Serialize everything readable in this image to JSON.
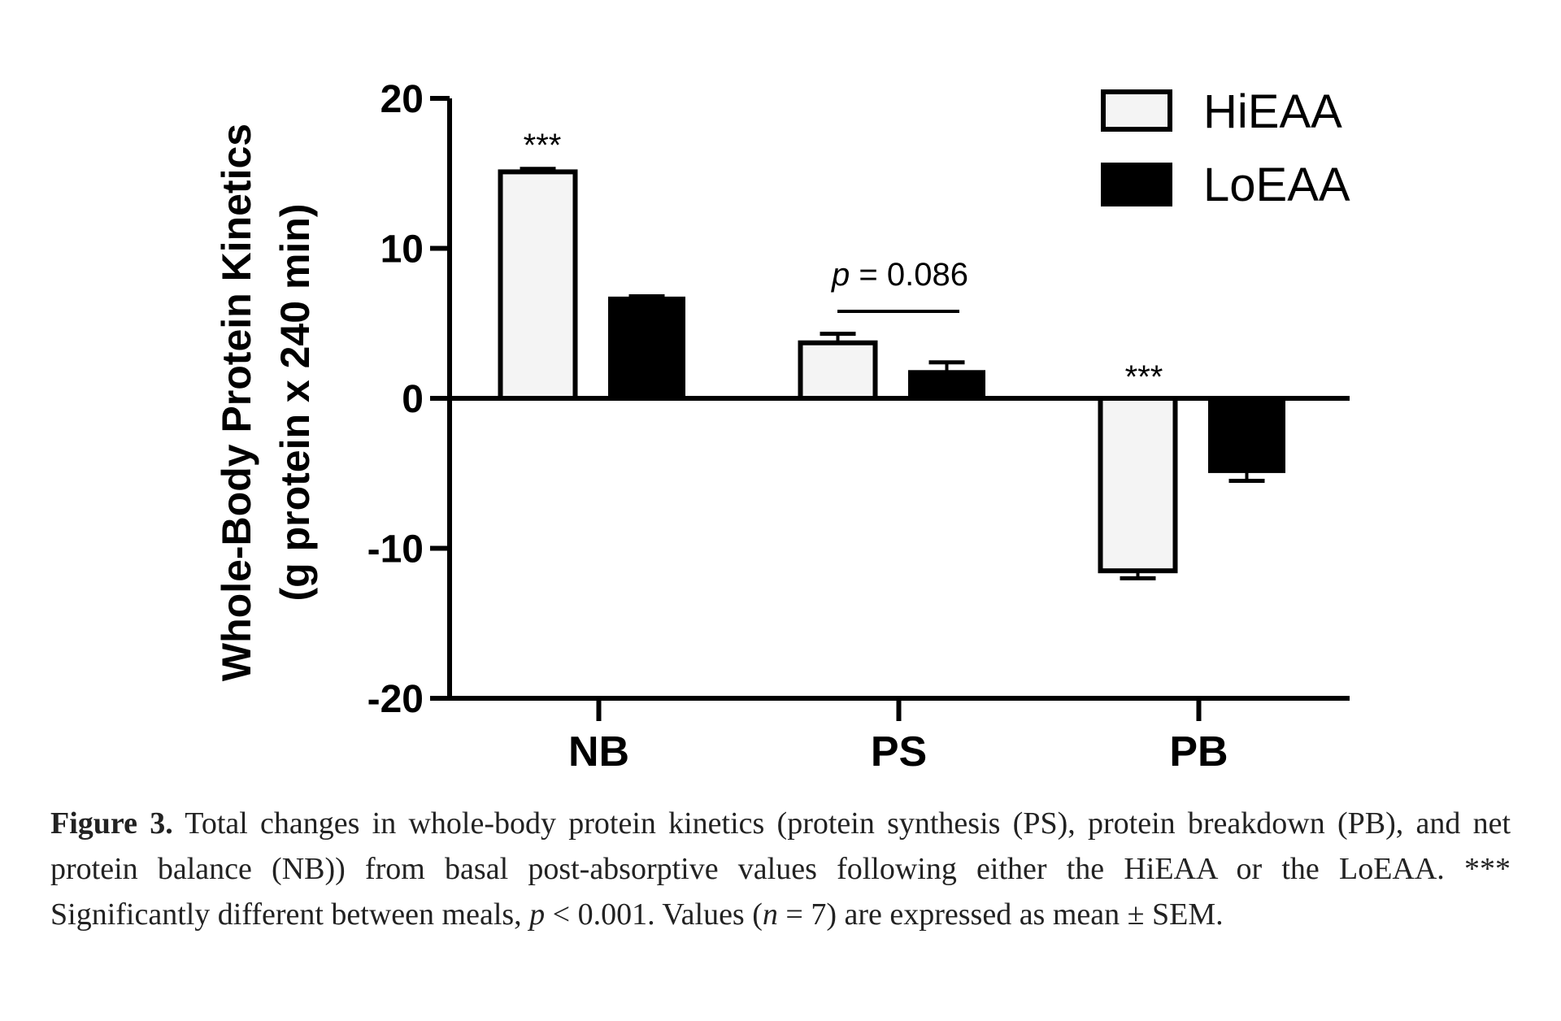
{
  "chart_data": {
    "type": "bar",
    "categories": [
      "NB",
      "PS",
      "PB"
    ],
    "series": [
      {
        "name": "HiEAA",
        "values": [
          15.1,
          3.7,
          -11.5
        ],
        "errors": [
          0.2,
          0.6,
          0.5
        ],
        "fill": "#f4f4f4"
      },
      {
        "name": "LoEAA",
        "values": [
          6.7,
          1.8,
          -4.9
        ],
        "errors": [
          0.1,
          0.6,
          0.6
        ],
        "fill": "#000000"
      }
    ],
    "ylabel_line1": "Whole-Body Protein Kinetics",
    "ylabel_line2": "(g protein x 240 min)",
    "ylim": [
      -20,
      20
    ],
    "yticks": [
      20,
      10,
      0,
      -10,
      -20
    ],
    "legend_position": "top-right",
    "annotations": {
      "nb_significance": "***",
      "pb_significance": "***",
      "ps_p_italic": "p",
      "ps_p_value": " = 0.086"
    }
  },
  "caption": {
    "label": "Figure 3.",
    "part1": " Total changes in whole-body protein kinetics (protein synthesis (PS), protein breakdown (PB), and net protein balance (NB)) from basal post-absorptive values following either the HiEAA or the LoEAA. *** Significantly different between meals, ",
    "p_italic": "p",
    "part2": " < 0.001.  Values (",
    "n_italic": "n",
    "part3": " = 7) are expressed as mean ± SEM."
  }
}
